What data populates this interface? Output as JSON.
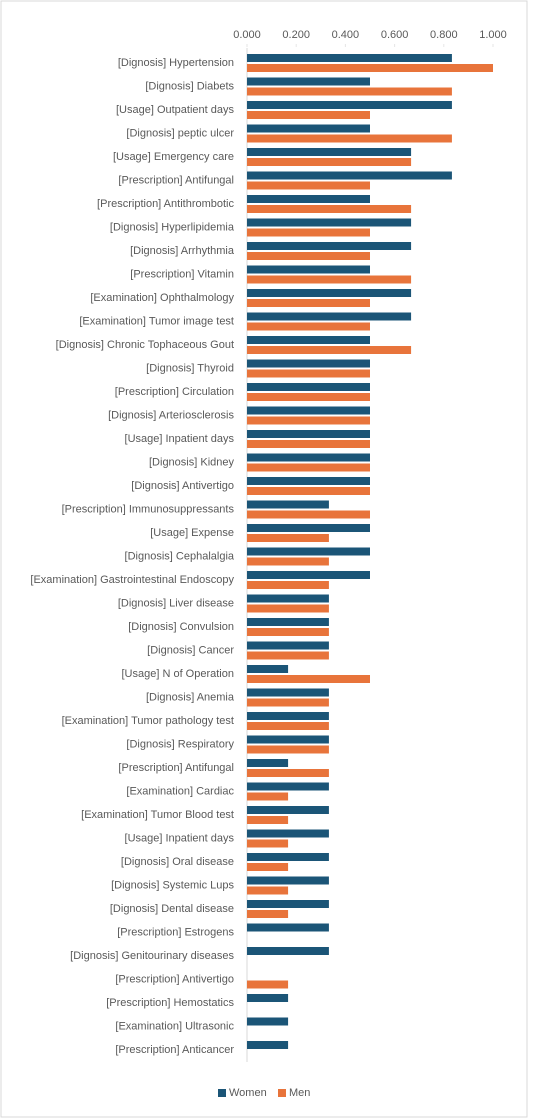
{
  "chart_data": {
    "type": "hbar",
    "categories": [
      "[Dignosis] Hypertension",
      "[Dignosis] Diabets",
      "[Usage] Outpatient days",
      "[Dignosis] peptic ulcer",
      "[Usage] Emergency care",
      "[Prescription] Antifungal",
      "[Prescription] Antithrombotic",
      "[Dignosis] Hyperlipidemia",
      "[Dignosis] Arrhythmia",
      "[Prescription] Vitamin",
      "[Examination] Ophthalmology",
      "[Examination] Tumor image test",
      "[Dignosis] Chronic Tophaceous Gout",
      "[Dignosis] Thyroid",
      "[Prescription] Circulation",
      "[Dignosis] Arteriosclerosis",
      "[Usage] Inpatient days",
      "[Dignosis] Kidney",
      "[Dignosis] Antivertigo",
      "[Prescription] Immunosuppressants",
      "[Usage] Expense",
      "[Dignosis] Cephalalgia",
      "[Examination] Gastrointestinal Endoscopy",
      "[Dignosis] Liver disease",
      "[Dignosis] Convulsion",
      "[Dignosis] Cancer",
      "[Usage] N of Operation",
      "[Dignosis] Anemia",
      "[Examination] Tumor pathology test",
      "[Dignosis] Respiratory",
      "[Prescription] Antifungal",
      "[Examination] Cardiac",
      "[Examination] Tumor Blood test",
      "[Usage] Inpatient days",
      "[Dignosis] Oral disease",
      "[Dignosis] Systemic Lups",
      "[Dignosis] Dental disease",
      "[Prescription] Estrogens",
      "[Dignosis] Genitourinary diseases",
      "[Prescription] Antivertigo",
      "[Prescription] Hemostatics",
      "[Examination] Ultrasonic",
      "[Prescription] Anticancer"
    ],
    "series": [
      {
        "name": "Women",
        "color": "#1b5577",
        "values": [
          0.833,
          0.5,
          0.833,
          0.5,
          0.667,
          0.833,
          0.5,
          0.667,
          0.667,
          0.5,
          0.667,
          0.667,
          0.5,
          0.5,
          0.5,
          0.5,
          0.5,
          0.5,
          0.5,
          0.333,
          0.5,
          0.5,
          0.5,
          0.333,
          0.333,
          0.333,
          0.167,
          0.333,
          0.333,
          0.333,
          0.167,
          0.333,
          0.333,
          0.333,
          0.333,
          0.333,
          0.333,
          0.333,
          0.333,
          null,
          0.167,
          0.167,
          0.167
        ]
      },
      {
        "name": "Men",
        "color": "#e8743b",
        "values": [
          1.0,
          0.833,
          0.5,
          0.833,
          0.667,
          0.5,
          0.667,
          0.5,
          0.5,
          0.667,
          0.5,
          0.5,
          0.667,
          0.5,
          0.5,
          0.5,
          0.5,
          0.5,
          0.5,
          0.5,
          0.333,
          0.333,
          0.333,
          0.333,
          0.333,
          0.333,
          0.5,
          0.333,
          0.333,
          0.333,
          0.333,
          0.167,
          0.167,
          0.167,
          0.167,
          0.167,
          0.167,
          null,
          null,
          0.167,
          null,
          null,
          null
        ]
      }
    ],
    "xlim": [
      0,
      1.0
    ],
    "xticks": [
      {
        "value": 0,
        "label": "0.000"
      },
      {
        "value": 0.2,
        "label": "0.200"
      },
      {
        "value": 0.4,
        "label": "0.400"
      },
      {
        "value": 0.6,
        "label": "0.600"
      },
      {
        "value": 0.8,
        "label": "0.800"
      },
      {
        "value": 1.0,
        "label": "1.000"
      }
    ],
    "legend": "bottom"
  }
}
